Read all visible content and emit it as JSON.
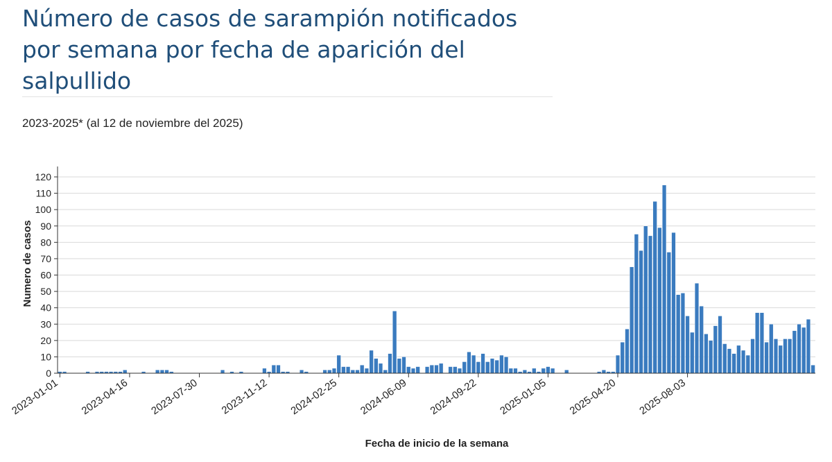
{
  "header": {
    "title": "Número de casos de sarampión notificados por semana por fecha de aparición del salpullido",
    "subtitle": "2023-2025* (al 12 de noviembre del 2025)"
  },
  "colors": {
    "bar": "#3a7bbf",
    "bar_stroke": "#ffffff",
    "grid": "#d9d9d9",
    "axis": "#333333",
    "title": "#1f4e79"
  },
  "chart_data": {
    "type": "bar",
    "xlabel": "Fecha de inicio de la semana",
    "ylabel": "Numero de casos",
    "ylim": [
      0,
      120
    ],
    "yticks": [
      0,
      10,
      20,
      30,
      40,
      50,
      60,
      70,
      80,
      90,
      100,
      110,
      120
    ],
    "grid": true,
    "x_start_week": "2023-01-01",
    "x_tick_labels": [
      "2023-01-01",
      "2023-04-16",
      "2023-07-30",
      "2023-11-12",
      "2024-02-25",
      "2024-06-09",
      "2024-09-22",
      "2025-01-05",
      "2025-04-20",
      "2025-08-03"
    ],
    "values": [
      1,
      1,
      0,
      0,
      0,
      0,
      1,
      0,
      1,
      1,
      1,
      1,
      1,
      1,
      2,
      0,
      0,
      0,
      1,
      0,
      0,
      2,
      2,
      2,
      1,
      0,
      0,
      0,
      0,
      0,
      0,
      0,
      0,
      0,
      0,
      2,
      0,
      1,
      0,
      1,
      0,
      0,
      0,
      0,
      3,
      1,
      5,
      5,
      1,
      1,
      0,
      0,
      2,
      1,
      0,
      0,
      0,
      2,
      2,
      3,
      11,
      4,
      4,
      2,
      2,
      5,
      3,
      14,
      9,
      6,
      2,
      12,
      38,
      9,
      10,
      4,
      3,
      4,
      0,
      4,
      5,
      5,
      6,
      0,
      4,
      4,
      3,
      7,
      13,
      11,
      7,
      12,
      7,
      9,
      8,
      11,
      10,
      3,
      3,
      1,
      2,
      1,
      3,
      1,
      3,
      4,
      3,
      0,
      0,
      2,
      0,
      0,
      0,
      0,
      0,
      0,
      1,
      2,
      1,
      1,
      11,
      19,
      27,
      65,
      85,
      75,
      90,
      84,
      105,
      89,
      115,
      74,
      86,
      48,
      49,
      35,
      25,
      55,
      41,
      24,
      20,
      29,
      35,
      18,
      15,
      12,
      17,
      14,
      11,
      21,
      37,
      37,
      19,
      30,
      21,
      17,
      21,
      21,
      26,
      30,
      28,
      33,
      5
    ]
  }
}
